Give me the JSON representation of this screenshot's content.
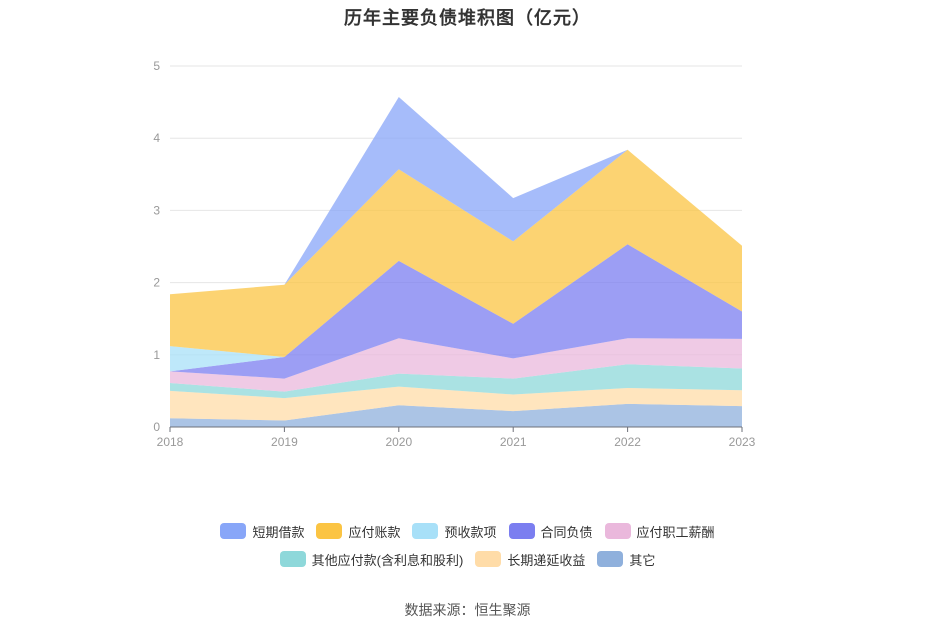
{
  "title": "历年主要负债堆积图（亿元）",
  "source": "数据来源：恒生聚源",
  "chart_data": {
    "type": "area",
    "stacked": true,
    "categories": [
      "2018",
      "2019",
      "2020",
      "2021",
      "2022",
      "2023"
    ],
    "y_ticks": [
      "0",
      "1",
      "2",
      "3",
      "4",
      "5"
    ],
    "ylim": [
      0,
      5
    ],
    "grid": true,
    "legend_position": "bottom",
    "series": [
      {
        "name": "其它",
        "color": "#8fb0dc",
        "values": [
          0.12,
          0.09,
          0.3,
          0.22,
          0.32,
          0.29
        ]
      },
      {
        "name": "长期递延收益",
        "color": "#ffdca8",
        "values": [
          0.38,
          0.31,
          0.26,
          0.23,
          0.22,
          0.22
        ]
      },
      {
        "name": "其他应付款(含利息和股利)",
        "color": "#8ed8da",
        "values": [
          0.11,
          0.09,
          0.18,
          0.22,
          0.33,
          0.3
        ]
      },
      {
        "name": "应付职工薪酬",
        "color": "#eab8dc",
        "values": [
          0.16,
          0.18,
          0.49,
          0.28,
          0.36,
          0.41
        ]
      },
      {
        "name": "合同负债",
        "color": "#7b7ef0",
        "values": [
          0,
          0.3,
          1.07,
          0.48,
          1.3,
          0.38
        ]
      },
      {
        "name": "预收款项",
        "color": "#a8e0f8",
        "values": [
          0.35,
          0,
          0,
          0,
          0,
          0
        ]
      },
      {
        "name": "应付账款",
        "color": "#fbc443",
        "values": [
          0.72,
          1.0,
          1.27,
          1.14,
          1.31,
          0.91
        ]
      },
      {
        "name": "短期借款",
        "color": "#88a6f8",
        "values": [
          0,
          0,
          1.0,
          0.6,
          0,
          0
        ]
      }
    ]
  }
}
